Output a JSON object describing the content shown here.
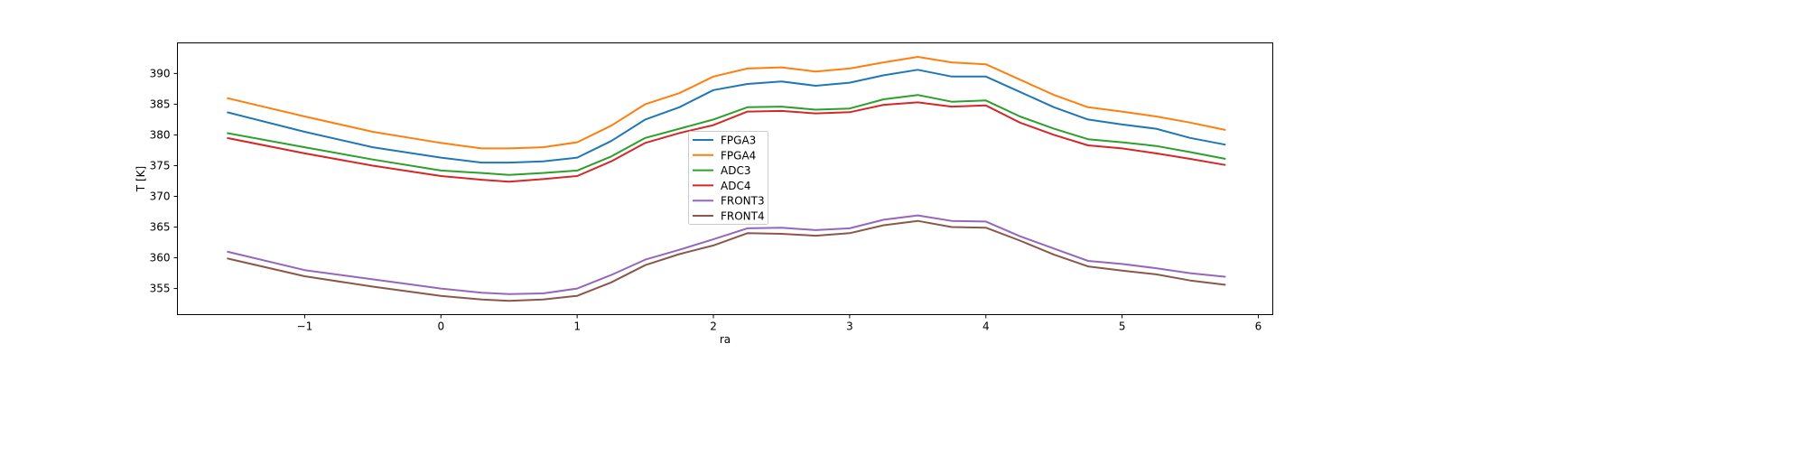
{
  "chart_data": {
    "type": "line",
    "title": "",
    "xlabel": "ra",
    "ylabel": "T [K]",
    "xlim": [
      -1.934,
      6.106
    ],
    "ylim": [
      350.75,
      394.98
    ],
    "xticks": [
      -1,
      0,
      1,
      2,
      3,
      4,
      5,
      6
    ],
    "yticks": [
      355,
      360,
      365,
      370,
      375,
      380,
      385,
      390
    ],
    "grid": false,
    "legend_placement": "center",
    "x": [
      -1.57,
      -1,
      -0.5,
      0,
      0.3,
      0.5,
      0.75,
      1,
      1.25,
      1.5,
      1.75,
      2,
      2.25,
      2.5,
      2.75,
      3,
      3.25,
      3.5,
      3.75,
      4,
      4.25,
      4.5,
      4.75,
      5,
      5.25,
      5.5,
      5.76
    ],
    "series": [
      {
        "name": "FPGA3",
        "color": "#1f77b4",
        "values": [
          383.7,
          380.5,
          378,
          376.3,
          375.5,
          375.5,
          375.7,
          376.3,
          379,
          382.5,
          384.5,
          387.3,
          388.3,
          388.7,
          388,
          388.5,
          389.7,
          390.6,
          389.5,
          389.5,
          387,
          384.5,
          382.5,
          381.7,
          381,
          379.5,
          378.4
        ]
      },
      {
        "name": "FPGA4",
        "color": "#ff7f0e",
        "values": [
          386,
          383,
          380.5,
          378.7,
          377.8,
          377.8,
          378,
          378.8,
          381.5,
          385,
          386.8,
          389.5,
          390.8,
          391,
          390.3,
          390.8,
          391.8,
          392.7,
          391.8,
          391.5,
          389,
          386.5,
          384.5,
          383.8,
          383,
          382,
          380.8
        ]
      },
      {
        "name": "ADC3",
        "color": "#2ca02c",
        "values": [
          380.3,
          378,
          376,
          374.2,
          373.8,
          373.5,
          373.8,
          374.2,
          376.5,
          379.5,
          381,
          382.5,
          384.5,
          384.6,
          384.1,
          384.3,
          385.8,
          386.5,
          385.4,
          385.6,
          383,
          381,
          379.3,
          378.8,
          378.2,
          377.2,
          376.1
        ]
      },
      {
        "name": "ADC4",
        "color": "#d62728",
        "values": [
          379.5,
          377,
          375,
          373.3,
          372.7,
          372.4,
          372.8,
          373.3,
          375.7,
          378.7,
          380.3,
          381.6,
          383.8,
          383.9,
          383.5,
          383.7,
          384.9,
          385.3,
          384.6,
          384.8,
          382,
          380,
          378.3,
          377.8,
          377,
          376.1,
          375.1
        ]
      },
      {
        "name": "FRONT3",
        "color": "#9467bd",
        "values": [
          361,
          358,
          356.5,
          355,
          354.3,
          354.1,
          354.2,
          355,
          357.2,
          359.7,
          361.3,
          363,
          364.8,
          364.9,
          364.5,
          364.8,
          366.2,
          366.9,
          366,
          365.9,
          363.5,
          361.5,
          359.5,
          359,
          358.3,
          357.5,
          356.9
        ]
      },
      {
        "name": "FRONT4",
        "color": "#8c564b",
        "values": [
          359.9,
          357,
          355.3,
          353.8,
          353.2,
          353,
          353.2,
          353.8,
          356,
          358.8,
          360.6,
          362,
          364,
          363.9,
          363.6,
          364,
          365.3,
          366,
          365,
          364.9,
          362.8,
          360.5,
          358.6,
          357.9,
          357.3,
          356.3,
          355.6
        ]
      }
    ]
  }
}
